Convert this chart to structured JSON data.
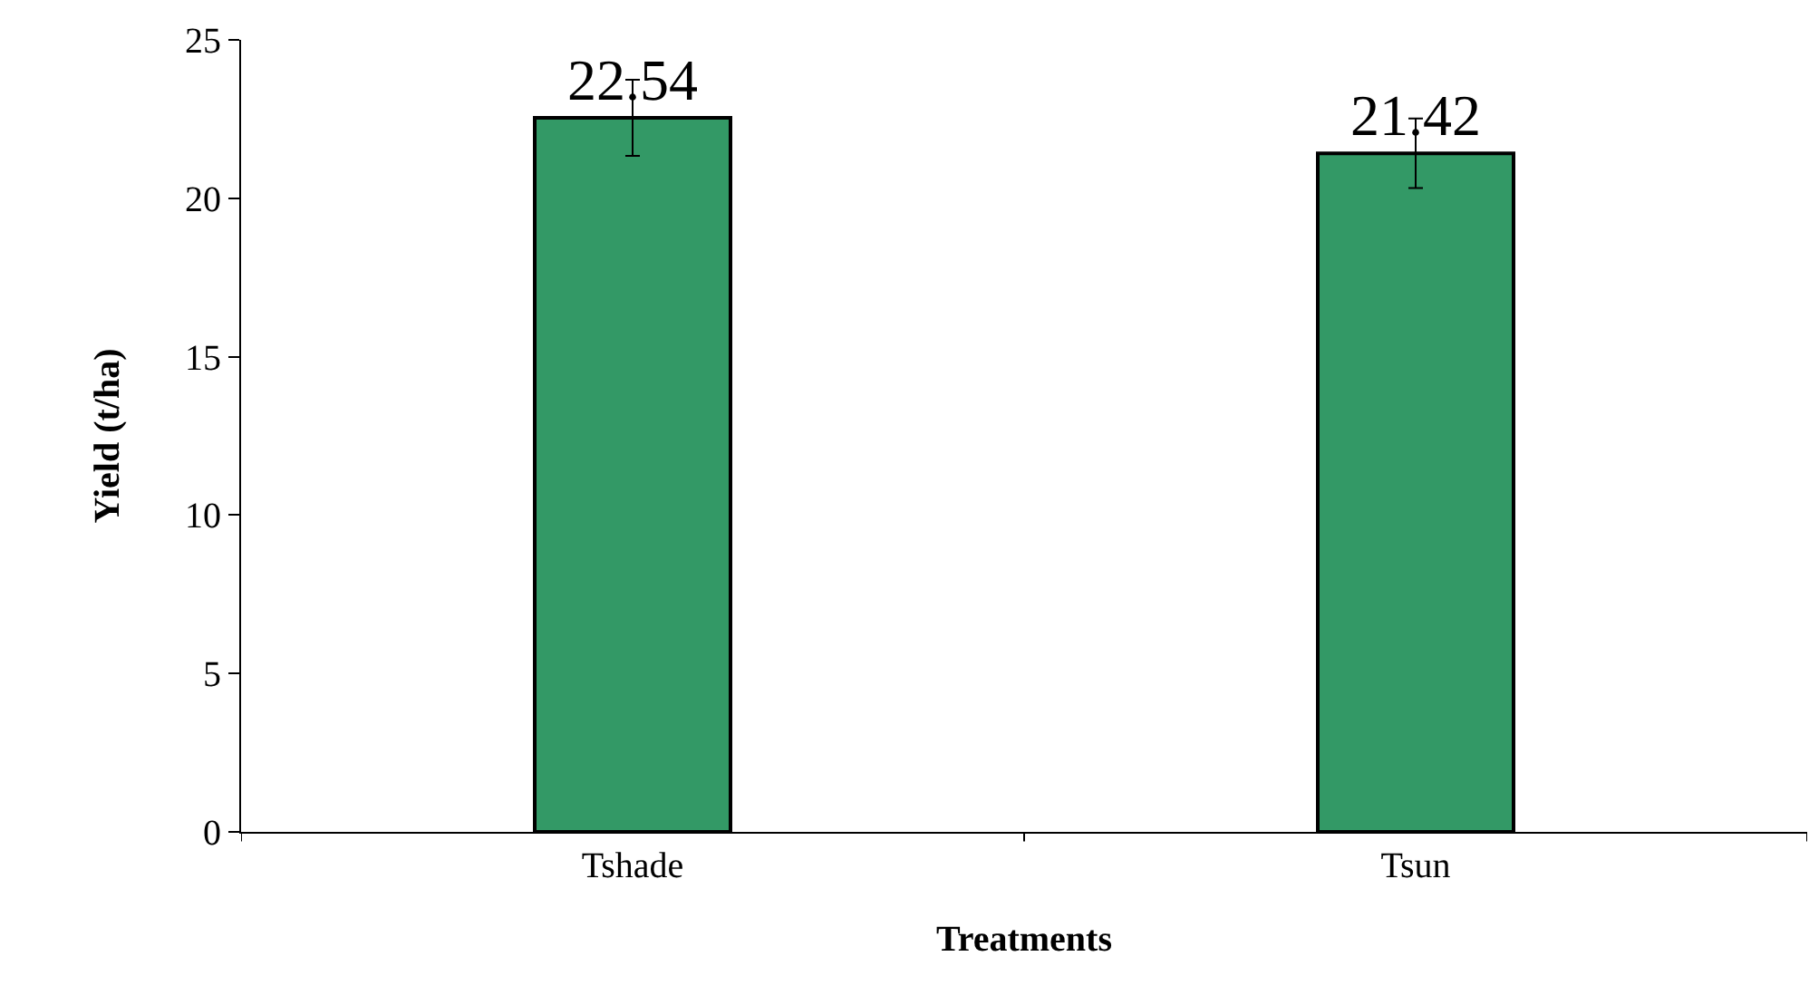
{
  "chart_data": {
    "type": "bar",
    "xlabel": "Treatments",
    "ylabel": "Yield (t/ha)",
    "categories": [
      "Tshade",
      "Tsun"
    ],
    "values": [
      22.54,
      21.42
    ],
    "errors": [
      1.2,
      1.1
    ],
    "color": "#339966",
    "data_labels": true,
    "ylim": [
      0,
      25
    ],
    "yticks": [
      0,
      5,
      10,
      15,
      20,
      25
    ]
  }
}
